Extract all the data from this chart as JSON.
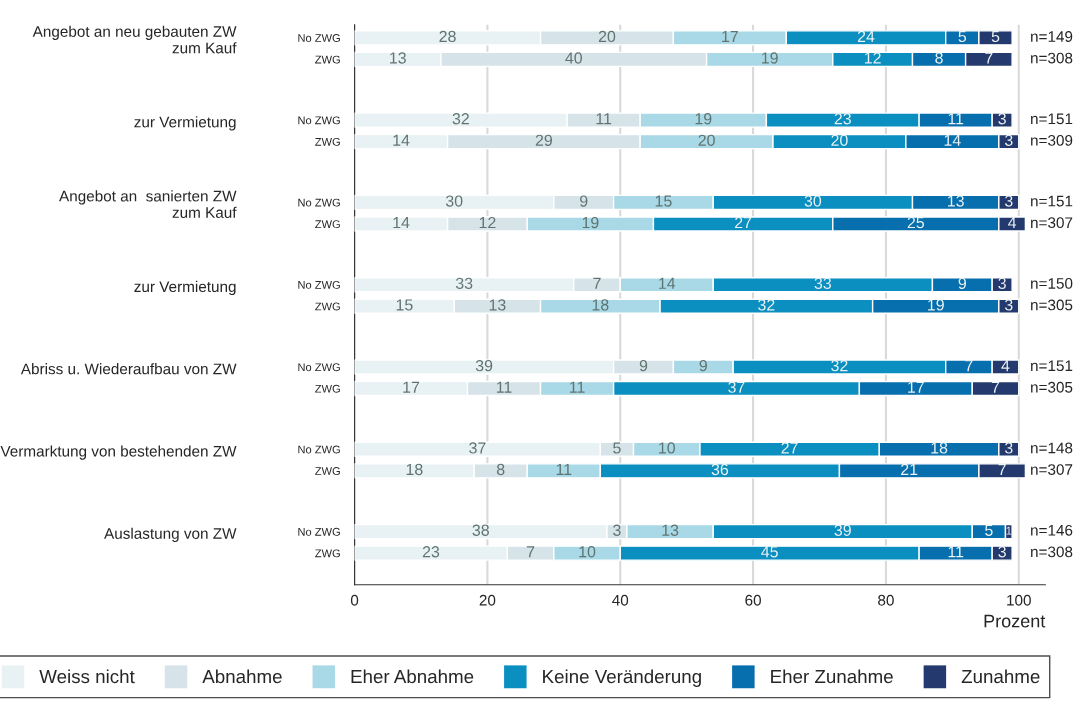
{
  "chart_data": {
    "type": "bar",
    "orientation": "horizontal",
    "stacked": true,
    "data_labels": true,
    "grid": "x",
    "legend": "bottom",
    "xlabel": "Prozent",
    "xlim": [
      0,
      104
    ],
    "xticks": [
      0,
      20,
      40,
      60,
      80,
      100
    ],
    "categories": [
      "No ZWG",
      "ZWG",
      "No ZWG",
      "ZWG",
      "No ZWG",
      "ZWG",
      "No ZWG",
      "ZWG",
      "No ZWG",
      "ZWG",
      "No ZWG",
      "ZWG",
      "No ZWG",
      "ZWG"
    ],
    "series": [
      {
        "name": "Weiss nicht",
        "color": "#e8f1f3",
        "values": [
          28,
          13,
          32,
          14,
          30,
          14,
          33,
          15,
          39,
          17,
          37,
          18,
          38,
          23
        ]
      },
      {
        "name": "Abnahme",
        "color": "#d6e4ea",
        "values": [
          20,
          40,
          11,
          29,
          9,
          12,
          7,
          13,
          9,
          11,
          5,
          8,
          3,
          7
        ]
      },
      {
        "name": "Eher Abnahme",
        "color": "#a9d8e6",
        "values": [
          17,
          19,
          19,
          20,
          15,
          19,
          14,
          18,
          9,
          11,
          10,
          11,
          13,
          10
        ]
      },
      {
        "name": "Keine Veränderung",
        "color": "#0a8fc0",
        "values": [
          24,
          12,
          23,
          20,
          30,
          27,
          33,
          32,
          32,
          37,
          27,
          36,
          39,
          45
        ]
      },
      {
        "name": "Eher Zunahme",
        "color": "#076fae",
        "values": [
          5,
          8,
          11,
          14,
          13,
          25,
          9,
          19,
          7,
          17,
          18,
          21,
          5,
          11
        ]
      },
      {
        "name": "Zunahme",
        "color": "#243a6e",
        "values": [
          5,
          7,
          3,
          3,
          3,
          4,
          3,
          3,
          4,
          7,
          3,
          7,
          1,
          3
        ]
      }
    ],
    "annotations": [
      "Angebot an neu gebauten ZW\nzum Kauf",
      "zur Vermietung",
      "Angebot an  sanierten ZW\nzum Kauf",
      "zur Vermietung",
      "Abriss u. Wiederaufbau von ZW",
      "Vermarktung von bestehenden ZW",
      "Auslastung von ZW",
      "n=149",
      "n=308",
      "n=151",
      "n=309",
      "n=151",
      "n=307",
      "n=150",
      "n=305",
      "n=151",
      "n=305",
      "n=148",
      "n=307",
      "n=146",
      "n=308"
    ]
  }
}
